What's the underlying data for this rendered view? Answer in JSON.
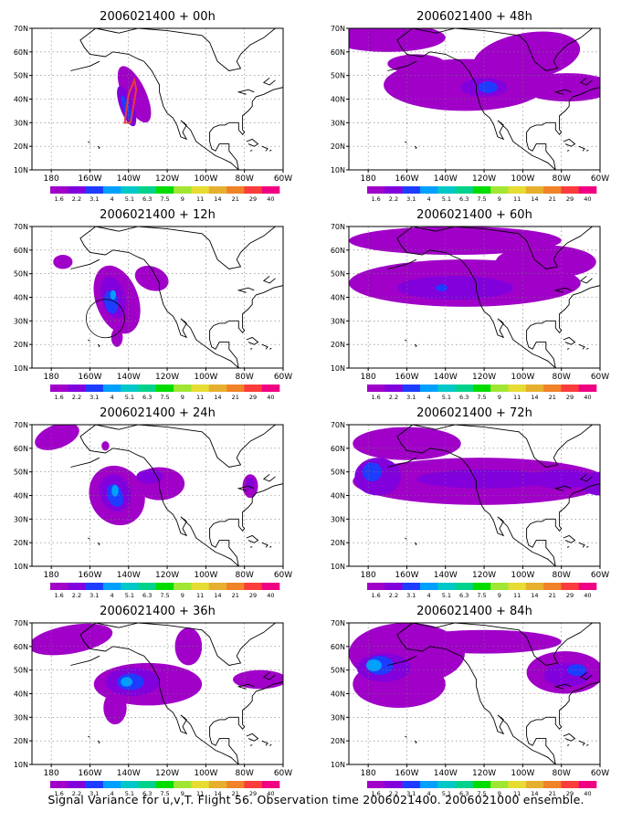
{
  "figure_caption": "Signal Variance for u,v,T. Flight 56. Observation time 2006021400. 2006021000 ensemble.",
  "chart_data": {
    "type": "map-panels",
    "base_time": "2006021400",
    "panels": [
      {
        "title": "2006021400 + 00h",
        "lead_hours": 0
      },
      {
        "title": "2006021400 + 12h",
        "lead_hours": 12
      },
      {
        "title": "2006021400 + 24h",
        "lead_hours": 24
      },
      {
        "title": "2006021400 + 36h",
        "lead_hours": 36
      },
      {
        "title": "2006021400 + 48h",
        "lead_hours": 48
      },
      {
        "title": "2006021400 + 60h",
        "lead_hours": 60
      },
      {
        "title": "2006021400 + 72h",
        "lead_hours": 72
      },
      {
        "title": "2006021400 + 84h",
        "lead_hours": 84
      }
    ],
    "lat_ticks": [
      "10N",
      "20N",
      "30N",
      "40N",
      "50N",
      "60N",
      "70N"
    ],
    "lon_ticks": [
      "180",
      "160W",
      "140W",
      "120W",
      "100W",
      "80W",
      "60W"
    ],
    "lat_range": [
      10,
      70
    ],
    "lon_range": [
      170,
      300
    ],
    "grid": "dotted",
    "colorbar": {
      "labels": [
        "1.6",
        "2.2",
        "3.1",
        "4",
        "5.1",
        "6.3",
        "7.5",
        "9",
        "11",
        "14",
        "21",
        "29",
        "40"
      ],
      "colors": [
        "#a000c8",
        "#8200dc",
        "#1e3cff",
        "#00a0ff",
        "#00c8c8",
        "#00d28c",
        "#00dc00",
        "#a0e632",
        "#e6dc32",
        "#e6af2d",
        "#f08228",
        "#fa3c3c",
        "#f00082"
      ]
    },
    "fill_colors": {
      "level1": "#a000c8",
      "level2": "#8200dc",
      "level3": "#1e3cff",
      "level4": "#00a0ff"
    }
  }
}
